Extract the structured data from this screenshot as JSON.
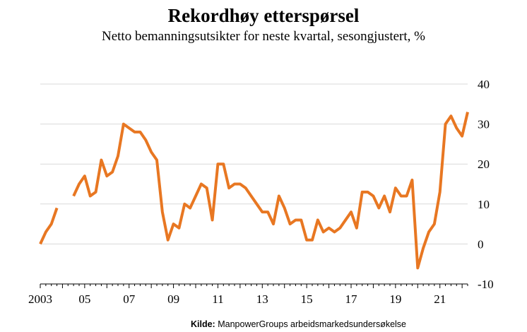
{
  "chart_data": {
    "type": "line",
    "title": "Rekordhøy etterspørsel",
    "subtitle": "Netto bemanningsutsikter for neste kvartal, sesongjustert, %",
    "source_label": "Kilde:",
    "source_text": "ManpowerGroups arbeidsmarkedsundersøkelse",
    "xlabel": "",
    "ylabel": "",
    "ylim": [
      -10,
      40
    ],
    "yticks": [
      40,
      30,
      20,
      10,
      0,
      -10
    ],
    "grid": true,
    "legend": "none",
    "line_color": "#E87722",
    "x_ticks": [
      {
        "label": "2003",
        "x": 2003.0
      },
      {
        "label": "05",
        "x": 2005.0
      },
      {
        "label": "07",
        "x": 2007.0
      },
      {
        "label": "09",
        "x": 2009.0
      },
      {
        "label": "11",
        "x": 2011.0
      },
      {
        "label": "13",
        "x": 2013.0
      },
      {
        "label": "15",
        "x": 2015.0
      },
      {
        "label": "17",
        "x": 2017.0
      },
      {
        "label": "19",
        "x": 2019.0
      },
      {
        "label": "21",
        "x": 2021.0
      }
    ],
    "series": [
      {
        "segments": [
          [
            [
              2003.0,
              0
            ],
            [
              2003.25,
              3
            ],
            [
              2003.5,
              5
            ],
            [
              2003.75,
              9
            ]
          ],
          [
            [
              2004.5,
              12
            ],
            [
              2004.75,
              15
            ],
            [
              2005.0,
              17
            ],
            [
              2005.25,
              12
            ],
            [
              2005.5,
              13
            ],
            [
              2005.75,
              21
            ],
            [
              2006.0,
              17
            ],
            [
              2006.25,
              18
            ],
            [
              2006.5,
              22
            ],
            [
              2006.75,
              30
            ],
            [
              2007.0,
              29
            ],
            [
              2007.25,
              28
            ],
            [
              2007.5,
              28
            ],
            [
              2007.75,
              26
            ],
            [
              2008.0,
              23
            ],
            [
              2008.25,
              21
            ],
            [
              2008.5,
              8
            ],
            [
              2008.75,
              1
            ],
            [
              2009.0,
              5
            ],
            [
              2009.25,
              4
            ],
            [
              2009.5,
              10
            ],
            [
              2009.75,
              9
            ],
            [
              2010.0,
              12
            ],
            [
              2010.25,
              15
            ],
            [
              2010.5,
              14
            ],
            [
              2010.75,
              6
            ],
            [
              2011.0,
              20
            ],
            [
              2011.25,
              20
            ],
            [
              2011.5,
              14
            ],
            [
              2011.75,
              15
            ],
            [
              2012.0,
              15
            ],
            [
              2012.25,
              14
            ],
            [
              2012.5,
              12
            ],
            [
              2012.75,
              10
            ],
            [
              2013.0,
              8
            ],
            [
              2013.25,
              8
            ],
            [
              2013.5,
              5
            ],
            [
              2013.75,
              12
            ],
            [
              2014.0,
              9
            ],
            [
              2014.25,
              5
            ],
            [
              2014.5,
              6
            ],
            [
              2014.75,
              6
            ],
            [
              2015.0,
              1
            ],
            [
              2015.25,
              1
            ],
            [
              2015.5,
              6
            ],
            [
              2015.75,
              3
            ],
            [
              2016.0,
              4
            ],
            [
              2016.25,
              3
            ],
            [
              2016.5,
              4
            ],
            [
              2016.75,
              6
            ],
            [
              2017.0,
              8
            ],
            [
              2017.25,
              4
            ],
            [
              2017.5,
              13
            ],
            [
              2017.75,
              13
            ],
            [
              2018.0,
              12
            ],
            [
              2018.25,
              9
            ],
            [
              2018.5,
              12
            ],
            [
              2018.75,
              8
            ],
            [
              2019.0,
              14
            ],
            [
              2019.25,
              12
            ],
            [
              2019.5,
              12
            ],
            [
              2019.75,
              16
            ],
            [
              2020.0,
              -6
            ],
            [
              2020.25,
              -1
            ],
            [
              2020.5,
              3
            ],
            [
              2020.75,
              5
            ],
            [
              2021.0,
              13
            ],
            [
              2021.25,
              30
            ],
            [
              2021.5,
              32
            ],
            [
              2021.75,
              29
            ],
            [
              2022.0,
              27
            ],
            [
              2022.25,
              33
            ]
          ]
        ]
      }
    ]
  }
}
